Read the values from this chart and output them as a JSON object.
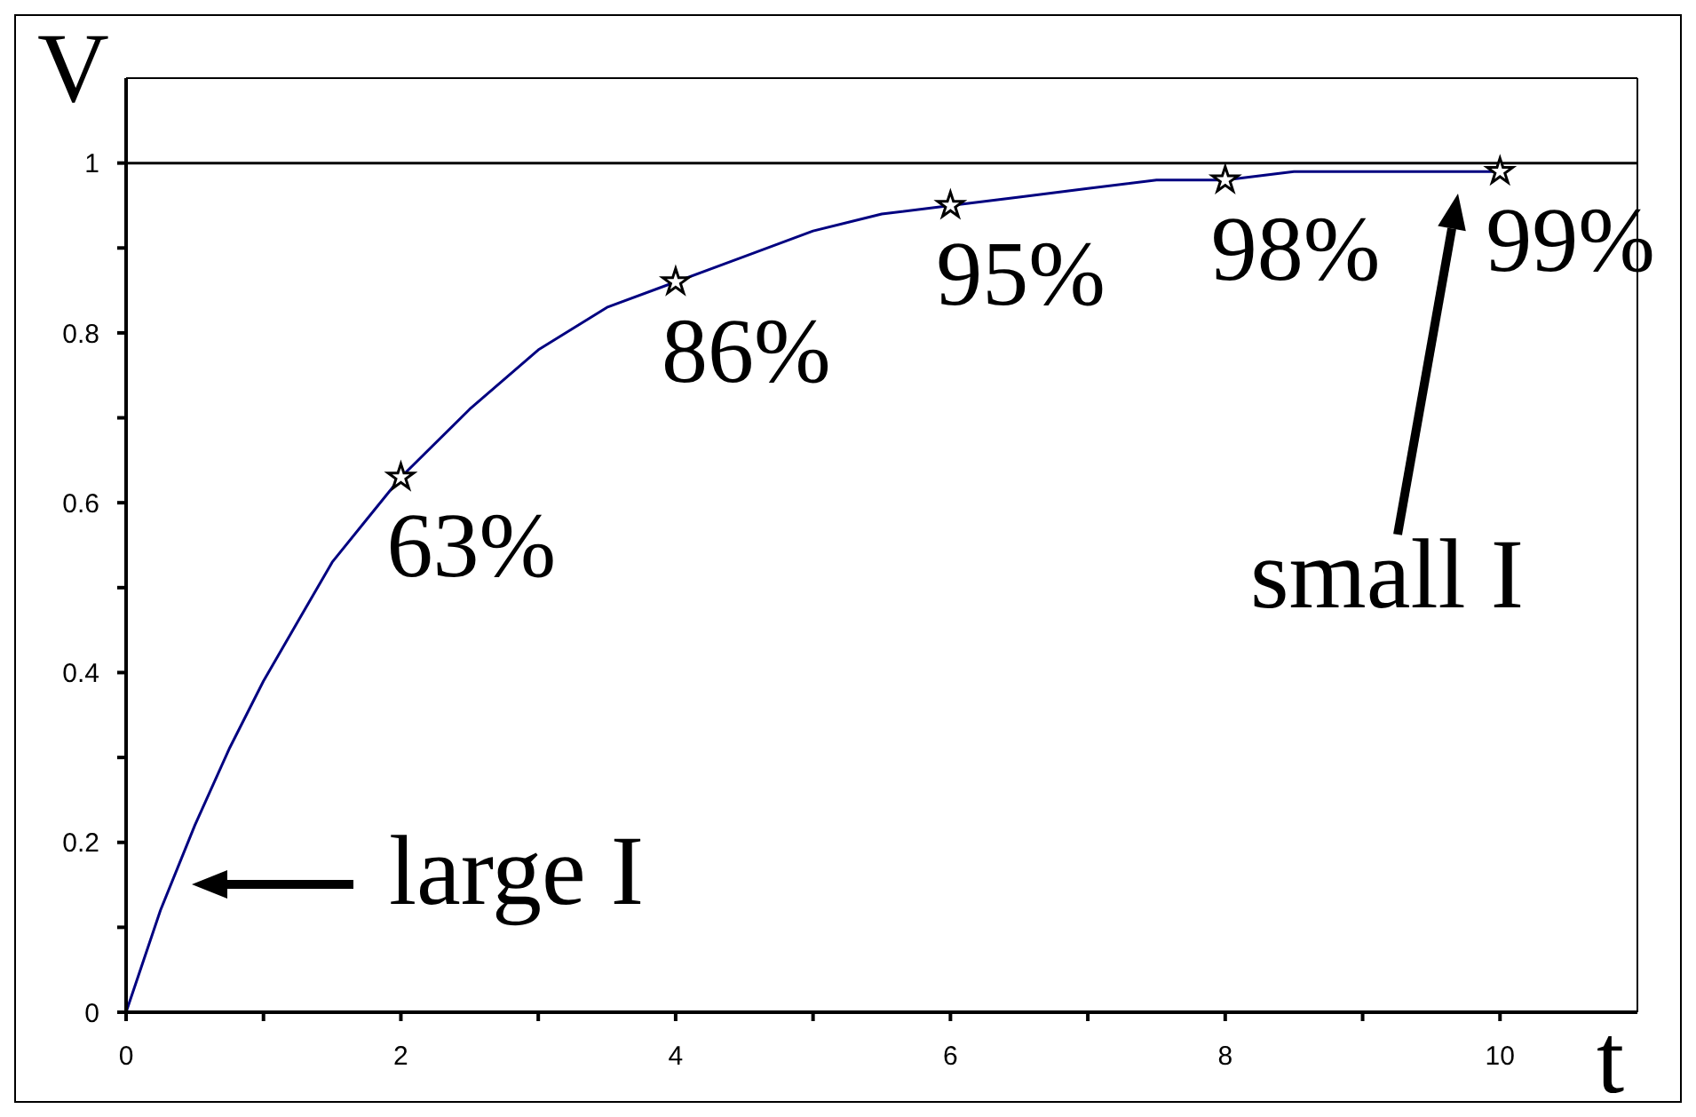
{
  "chart_data": {
    "type": "line",
    "xlabel": "t",
    "ylabel": "V",
    "xlim": [
      0,
      11
    ],
    "ylim": [
      0,
      1.1
    ],
    "xticks": [
      0,
      {
        "value": 1,
        "label": null
      },
      2,
      {
        "value": 3,
        "label": null
      },
      4,
      {
        "value": 5,
        "label": null
      },
      6,
      {
        "value": 7,
        "label": null
      },
      8,
      {
        "value": 9,
        "label": null
      },
      10
    ],
    "yticks": [
      0,
      {
        "value": 0.1,
        "label": null
      },
      0.2,
      {
        "value": 0.3,
        "label": null
      },
      0.4,
      {
        "value": 0.5,
        "label": null
      },
      0.6,
      {
        "value": 0.7,
        "label": null
      },
      0.8,
      {
        "value": 0.9,
        "label": null
      },
      1
    ],
    "series": [
      {
        "color": "#000080",
        "marker": "none",
        "line_style": "solid",
        "x": [
          0,
          0.25,
          0.5,
          0.75,
          1,
          1.25,
          1.5,
          1.75,
          2,
          2.5,
          3,
          3.5,
          4,
          4.5,
          5,
          5.5,
          6,
          6.5,
          7,
          7.5,
          8,
          8.5,
          9,
          9.5,
          10
        ],
        "values": [
          0,
          0.12,
          0.22,
          0.31,
          0.39,
          0.46,
          0.53,
          0.58,
          0.63,
          0.71,
          0.78,
          0.83,
          0.86,
          0.89,
          0.92,
          0.94,
          0.95,
          0.96,
          0.97,
          0.98,
          0.98,
          0.99,
          0.99,
          0.99,
          0.99
        ]
      },
      {
        "type": "scatter",
        "color": "#000000",
        "marker": "star",
        "x": [
          2,
          4,
          6,
          8,
          10
        ],
        "values": [
          0.63,
          0.86,
          0.95,
          0.98,
          0.99
        ],
        "value_labels": [
          "63%",
          "86%",
          "95%",
          "98%",
          "99%"
        ]
      }
    ],
    "ref_lines": [
      {
        "axis": "y",
        "value": 1,
        "color": "#000000"
      }
    ],
    "annotations": [
      "large I",
      "small I"
    ]
  }
}
